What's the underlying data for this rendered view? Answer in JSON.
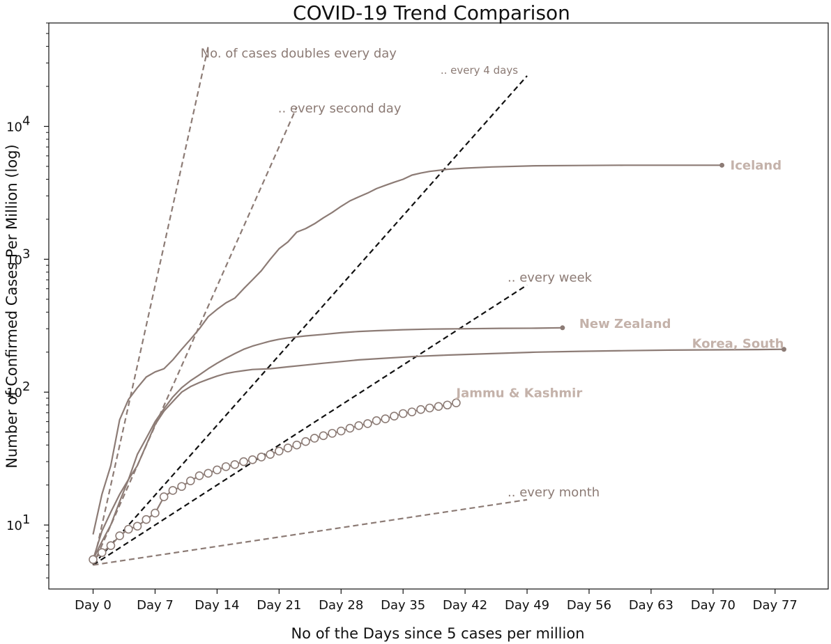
{
  "chart_data": {
    "type": "line",
    "title": "COVID-19 Trend Comparison",
    "xlabel": "No of the Days since 5 cases per million",
    "ylabel": "Number of Confirmed Cases Per Million (log)",
    "yscale": "log",
    "xlim": [
      -5,
      83
    ],
    "ylim": [
      3.3,
      60000
    ],
    "grid": false,
    "legend": "none",
    "x_ticks": [
      0,
      7,
      14,
      21,
      28,
      35,
      42,
      49,
      56,
      63,
      70,
      77
    ],
    "x_tick_labels": [
      "Day 0",
      "Day 7",
      "Day 14",
      "Day 21",
      "Day 28",
      "Day 35",
      "Day 42",
      "Day 49",
      "Day 56",
      "Day 63",
      "Day 70",
      "Day 77"
    ],
    "y_ticks": [
      10,
      100,
      1000,
      10000
    ],
    "y_tick_labels": [
      "10",
      "10",
      "10",
      "10"
    ],
    "y_tick_exponents": [
      "1",
      "2",
      "3",
      "4"
    ],
    "colors": {
      "series": "#8c7b75",
      "series_label": "#c4b2aa",
      "reference": "#8c7b75",
      "reference_dark": "#111111",
      "marker_fill": "#ffffff"
    },
    "series": [
      {
        "name": "Iceland",
        "label_position": "end",
        "x": [
          0,
          1,
          2,
          3,
          4,
          5,
          6,
          7,
          8,
          9,
          10,
          11,
          12,
          13,
          14,
          15,
          16,
          17,
          18,
          19,
          20,
          21,
          22,
          23,
          24,
          25,
          26,
          27,
          28,
          29,
          30,
          31,
          32,
          33,
          34,
          35,
          36,
          37,
          38,
          40,
          42,
          45,
          50,
          55,
          60,
          65,
          70,
          71
        ],
        "y": [
          8.5,
          17,
          28,
          62,
          88,
          108,
          130,
          142,
          150,
          175,
          210,
          250,
          300,
          370,
          420,
          470,
          510,
          600,
          700,
          820,
          1000,
          1200,
          1350,
          1600,
          1700,
          1850,
          2050,
          2250,
          2500,
          2750,
          2950,
          3150,
          3400,
          3600,
          3800,
          4000,
          4300,
          4450,
          4580,
          4750,
          4850,
          4950,
          5050,
          5080,
          5100,
          5100,
          5100,
          5100
        ]
      },
      {
        "name": "New Zealand",
        "label_position": "end",
        "x": [
          0,
          1,
          2,
          3,
          4,
          5,
          6,
          7,
          8,
          9,
          10,
          11,
          12,
          13,
          14,
          15,
          16,
          17,
          18,
          19,
          20,
          21,
          22,
          24,
          26,
          28,
          30,
          32,
          35,
          38,
          42,
          46,
          50,
          53
        ],
        "y": [
          5.5,
          7.5,
          10,
          15,
          22,
          34,
          45,
          60,
          75,
          92,
          108,
          122,
          135,
          150,
          165,
          180,
          195,
          210,
          222,
          232,
          242,
          250,
          256,
          265,
          272,
          280,
          286,
          290,
          295,
          298,
          300,
          302,
          303,
          305
        ]
      },
      {
        "name": "Korea, South",
        "label_position": "end",
        "x": [
          0,
          1,
          2,
          3,
          4,
          5,
          6,
          7,
          8,
          9,
          10,
          11,
          12,
          13,
          14,
          15,
          16,
          17,
          18,
          20,
          22,
          24,
          26,
          28,
          30,
          33,
          36,
          40,
          45,
          50,
          55,
          60,
          65,
          70,
          75,
          78
        ],
        "y": [
          5.5,
          9,
          12.5,
          17,
          22,
          28,
          40,
          57,
          72,
          85,
          100,
          110,
          118,
          125,
          132,
          138,
          142,
          145,
          148,
          150,
          155,
          160,
          165,
          170,
          175,
          180,
          185,
          190,
          195,
          200,
          203,
          205,
          207,
          208,
          209,
          210
        ]
      },
      {
        "name": "Jammu & Kashmir",
        "label_position": "end",
        "markers": "open-circle",
        "x": [
          0,
          1,
          2,
          3,
          4,
          5,
          6,
          7,
          8,
          9,
          10,
          11,
          12,
          13,
          14,
          15,
          16,
          17,
          18,
          19,
          20,
          21,
          22,
          23,
          24,
          25,
          26,
          27,
          28,
          29,
          30,
          31,
          32,
          33,
          34,
          35,
          36,
          37,
          38,
          39,
          40,
          41
        ],
        "y": [
          5.5,
          6.2,
          7,
          8.3,
          9.3,
          9.8,
          11,
          12.3,
          16.3,
          18.2,
          19.5,
          21.5,
          23.5,
          24.5,
          26,
          27.5,
          28.5,
          30,
          31,
          32.5,
          34,
          36,
          38,
          40,
          42.5,
          45,
          47,
          49,
          51,
          53.5,
          56,
          58,
          61,
          63,
          66,
          69,
          71,
          74,
          76,
          78,
          80,
          83
        ]
      }
    ],
    "reference_lines": [
      {
        "label": "No. of cases doubles every day",
        "doubling_days": 1,
        "x": [
          0,
          13
        ],
        "y": [
          5,
          40000
        ],
        "dark": false
      },
      {
        "label": ".. every second day",
        "doubling_days": 2,
        "x": [
          0,
          23
        ],
        "y": [
          5,
          14000
        ],
        "dark": false
      },
      {
        "label": ".. every 4 days",
        "doubling_days": 4,
        "x": [
          0,
          49
        ],
        "y": [
          5,
          24000
        ],
        "dark": true
      },
      {
        "label": ".. every week",
        "doubling_days": 7,
        "x": [
          0,
          49
        ],
        "y": [
          5,
          640
        ],
        "dark": true
      },
      {
        "label": ".. every month",
        "doubling_days": 30,
        "x": [
          0,
          49
        ],
        "y": [
          5,
          15.5
        ],
        "dark": false
      }
    ]
  }
}
